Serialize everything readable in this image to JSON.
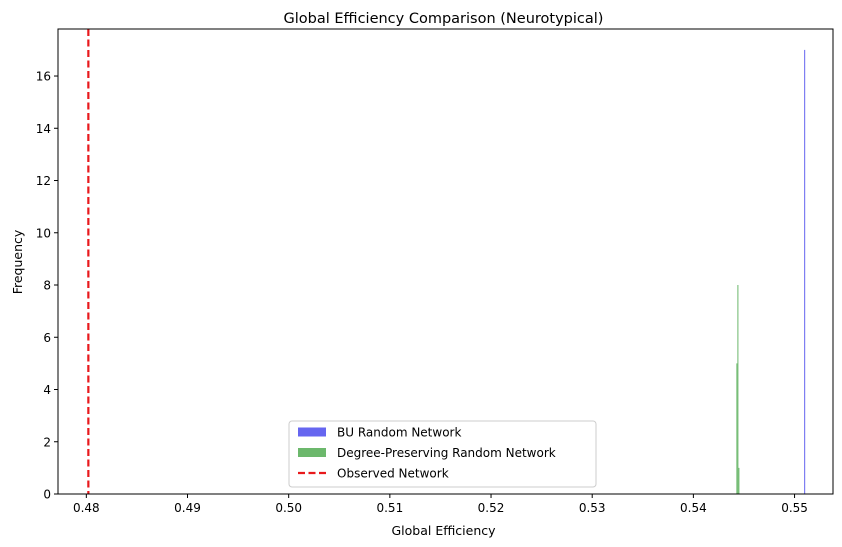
{
  "chart_data": {
    "type": "histogram",
    "title": "Global Efficiency Comparison (Neurotypical)",
    "xlabel": "Global Efficiency",
    "ylabel": "Frequency",
    "xlim": [
      0.4772,
      0.5538
    ],
    "ylim": [
      0,
      17.8
    ],
    "xticks": [
      0.48,
      0.49,
      0.5,
      0.51,
      0.52,
      0.53,
      0.54,
      0.55
    ],
    "xtick_labels": [
      "0.48",
      "0.49",
      "0.50",
      "0.51",
      "0.52",
      "0.53",
      "0.54",
      "0.55"
    ],
    "yticks": [
      0,
      2,
      4,
      6,
      8,
      10,
      12,
      14,
      16
    ],
    "ytick_labels": [
      "0",
      "2",
      "4",
      "6",
      "8",
      "10",
      "12",
      "14",
      "16"
    ],
    "series": [
      {
        "name": "BU Random Network",
        "kind": "bars",
        "color": "#6666f0",
        "bins": [
          {
            "x0": 0.55095,
            "x1": 0.55105,
            "count": 17
          }
        ]
      },
      {
        "name": "Degree-Preserving Random Network",
        "kind": "bars",
        "color": "#6cb86c",
        "bins": [
          {
            "x0": 0.54425,
            "x1": 0.54435,
            "count": 5
          },
          {
            "x0": 0.54435,
            "x1": 0.54445,
            "count": 8
          },
          {
            "x0": 0.54445,
            "x1": 0.54455,
            "count": 1
          }
        ]
      },
      {
        "name": "Observed Network",
        "kind": "vline",
        "color": "#e8191c",
        "x": 0.4802
      }
    ],
    "legend": {
      "position": "lower center",
      "entries": [
        "BU Random Network",
        "Degree-Preserving Random Network",
        "Observed Network"
      ]
    },
    "grid": false
  }
}
